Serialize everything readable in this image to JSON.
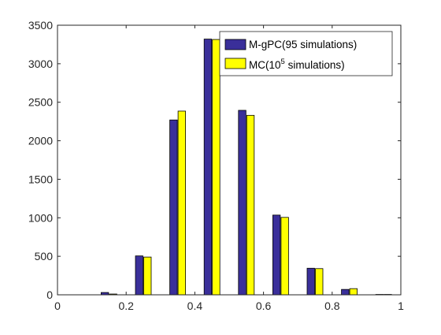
{
  "chart_data": {
    "type": "bar",
    "xlim": [
      0,
      1
    ],
    "ylim": [
      0,
      3500
    ],
    "x_ticks": [
      0,
      0.2,
      0.4,
      0.6,
      0.8,
      1
    ],
    "x_tick_labels": [
      "0",
      "0.2",
      "0.4",
      "0.6",
      "0.8",
      "1"
    ],
    "y_ticks": [
      0,
      500,
      1000,
      1500,
      2000,
      2500,
      3000,
      3500
    ],
    "y_tick_labels": [
      "0",
      "500",
      "1000",
      "1500",
      "2000",
      "2500",
      "3000",
      "3500"
    ],
    "grid": false,
    "legend_position": "top-right",
    "bin_centers": [
      0.15,
      0.25,
      0.35,
      0.45,
      0.55,
      0.65,
      0.75,
      0.85,
      0.95
    ],
    "series": [
      {
        "name": "M-gPC(95 simulations)",
        "color": "#3a2f9a",
        "values": [
          30,
          505,
          2270,
          3320,
          2395,
          1035,
          345,
          70,
          5
        ]
      },
      {
        "name_prefix": "MC(10",
        "name_sup": "5",
        "name_suffix": " simulations)",
        "color": "#ffff00",
        "values": [
          10,
          490,
          2385,
          3315,
          2330,
          1005,
          340,
          80,
          5
        ]
      }
    ]
  }
}
